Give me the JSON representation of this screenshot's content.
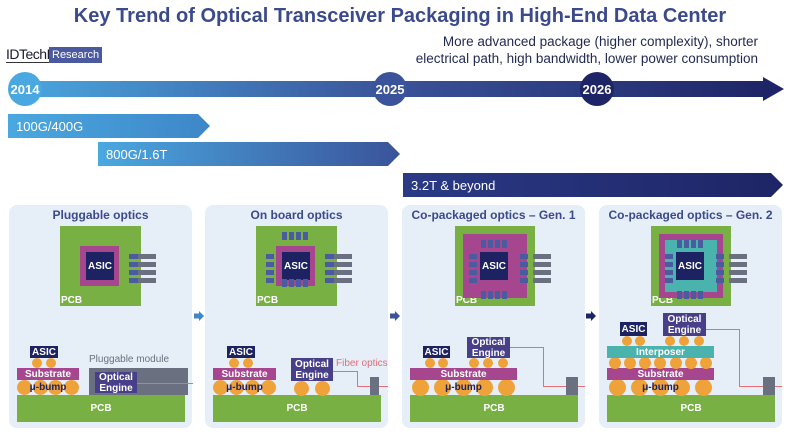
{
  "title": "Key Trend of Optical Transceiver Packaging in High-End Data Center",
  "logo": {
    "brand": "IDTechEx",
    "tag": "Research"
  },
  "note": {
    "line1": "More advanced package (higher complexity), shorter",
    "line2": "electrical path, high bandwidth, lower power consumption"
  },
  "timeline": {
    "years": [
      "2014",
      "2025",
      "2026"
    ]
  },
  "bandwidth": [
    "100G/400G",
    "800G/1.6T",
    "3.2T & beyond"
  ],
  "labels": {
    "pcb": "PCB",
    "asic": "ASIC",
    "substrate": "Substrate",
    "ubump": "μ-bump",
    "optical_engine": "Optical Engine",
    "pluggable_module": "Pluggable module",
    "fiber_optics": "Fiber optics",
    "interposer": "Interposer"
  },
  "panels": [
    {
      "title": "Pluggable optics"
    },
    {
      "title": "On board optics"
    },
    {
      "title": "Co-packaged optics – Gen. 1"
    },
    {
      "title": "Co-packaged optics – Gen. 2"
    }
  ],
  "colors": {
    "pcb": "#78b044",
    "substrate": "#a6468f",
    "asic": "#1d2263",
    "interposer": "#4bb3ae",
    "bump": "#f0a23a",
    "title": "#3b4a8c"
  }
}
